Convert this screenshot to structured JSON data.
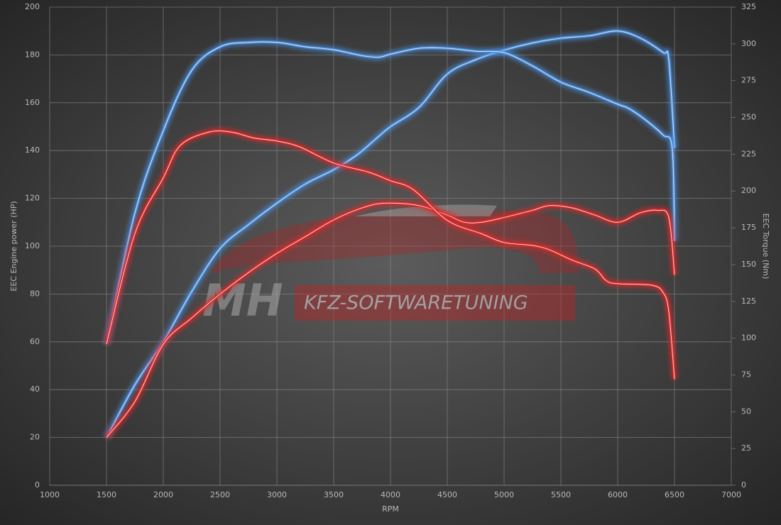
{
  "chart_data": {
    "type": "line",
    "x_label": "RPM",
    "y_label": "EEC Engine power (HP)",
    "y2_label": "EEC Torque (Nm)",
    "watermark": [
      "MH",
      "KFZ-SOFTWARETUNING"
    ],
    "xlim": [
      1000,
      7000
    ],
    "xticks": [
      1000,
      1500,
      2000,
      2500,
      3000,
      3500,
      4000,
      4500,
      5000,
      5500,
      6000,
      6500,
      7000
    ],
    "ylim": [
      0,
      200
    ],
    "yticks": [
      0,
      20,
      40,
      60,
      80,
      100,
      120,
      140,
      160,
      180,
      200
    ],
    "y2lim": [
      0,
      325
    ],
    "y2ticks": [
      0,
      25,
      50,
      75,
      100,
      125,
      150,
      175,
      200,
      225,
      250,
      275,
      300,
      325
    ],
    "grid": true,
    "series": [
      {
        "color": "#4a8fe0",
        "axis": "y",
        "x": [
          1500,
          1750,
          2000,
          2250,
          2500,
          2750,
          3000,
          3250,
          3500,
          3700,
          3850,
          4000,
          4250,
          4500,
          4750,
          5000,
          5250,
          5500,
          5750,
          6000,
          6200,
          6400,
          6450,
          6500
        ],
        "values": [
          20,
          42,
          60,
          81,
          99,
          109,
          118,
          126,
          132,
          138,
          144,
          150,
          158,
          172,
          178,
          182,
          185,
          187,
          188,
          190,
          187,
          181,
          178,
          141
        ]
      },
      {
        "color": "#4a8fe0",
        "axis": "y2",
        "x": [
          1500,
          1750,
          2000,
          2250,
          2500,
          2750,
          3000,
          3250,
          3500,
          3750,
          3900,
          4000,
          4250,
          4500,
          4750,
          5000,
          5250,
          5500,
          5750,
          6000,
          6100,
          6250,
          6400,
          6480,
          6500
        ],
        "values": [
          96,
          185,
          241,
          282,
          298,
          301,
          301,
          298,
          296,
          292,
          291,
          293,
          297,
          297,
          295,
          294,
          285,
          274,
          267,
          259,
          256,
          248,
          238,
          229,
          166
        ]
      },
      {
        "color": "#e02828",
        "axis": "y",
        "x": [
          1500,
          1750,
          2000,
          2250,
          2500,
          2750,
          3000,
          3250,
          3500,
          3750,
          3950,
          4250,
          4500,
          4650,
          4800,
          5000,
          5250,
          5400,
          5600,
          5800,
          6000,
          6200,
          6350,
          6450,
          6500
        ],
        "values": [
          20,
          35,
          59,
          70,
          80,
          89,
          97,
          104,
          111,
          116,
          118,
          117,
          113,
          110,
          110,
          112,
          115,
          117,
          116,
          113,
          110,
          114,
          115,
          112,
          88
        ]
      },
      {
        "color": "#e02828",
        "axis": "y2",
        "x": [
          1500,
          1750,
          2000,
          2150,
          2400,
          2600,
          2800,
          3000,
          3200,
          3500,
          3800,
          4000,
          4200,
          4500,
          4800,
          5000,
          5250,
          5400,
          5600,
          5800,
          5900,
          6000,
          6300,
          6400,
          6450,
          6500
        ],
        "values": [
          96,
          171,
          209,
          231,
          240,
          240,
          236,
          234,
          230,
          219,
          213,
          207,
          201,
          180,
          171,
          165,
          163,
          160,
          153,
          147,
          139,
          137,
          136,
          131,
          118,
          72
        ]
      }
    ]
  }
}
